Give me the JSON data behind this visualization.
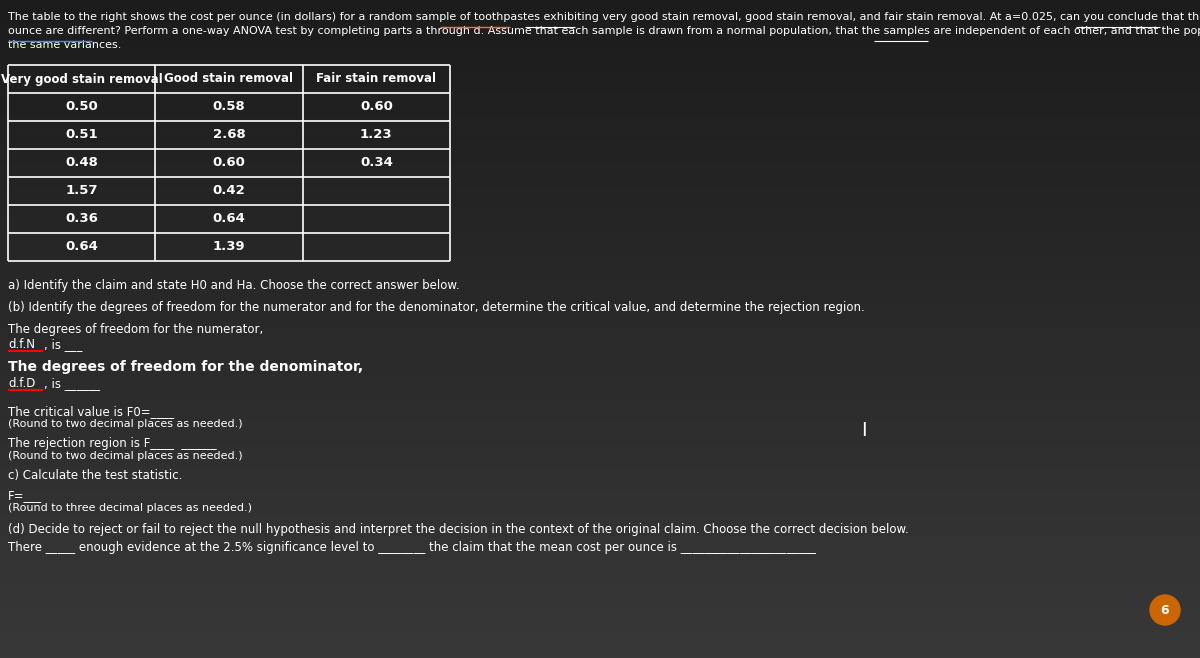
{
  "bg_top": "#1a1a1a",
  "bg_bottom": "#3a3a3a",
  "text_color": "#ffffff",
  "table_border_color": "#ffffff",
  "header_row": [
    "Very good stain removal",
    "Good stain removal",
    "Fair stain removal"
  ],
  "col1": [
    "0.50",
    "0.51",
    "0.48",
    "1.57",
    "0.36",
    "0.64"
  ],
  "col2": [
    "0.58",
    "2.68",
    "0.60",
    "0.42",
    "0.64",
    "1.39"
  ],
  "col3": [
    "0.60",
    "1.23",
    "0.34",
    "",
    "",
    ""
  ],
  "intro_line1": "The table to the right shows the cost per ounce (in dollars) for a random sample of toothpastes exhibiting very good stain removal, good stain removal, and fair stain removal. At a=0.025, can you conclude that the mean costs per",
  "intro_line2": "ounce are different? Perform a one-way ANOVA test by completing parts a through d. Assume that each sample is drawn from a normal population, that the samples are independent of each other, and that the populations have",
  "intro_line3": "the same variances.",
  "part_a": "a) Identify the claim and state H0 and Ha. Choose the correct answer below.",
  "part_b": "(b) Identify the degrees of freedom for the numerator and for the denominator, determine the critical value, and determine the rejection region.",
  "dfn_line1": "The degrees of freedom for the numerator,",
  "dfn_line2": "d.f.N, is ___",
  "dfd_line1": "The degrees of freedom for the denominator,",
  "dfd_line2": "d.f.D, is ______",
  "crit_line1": "The critical value is F0=____",
  "crit_line2": "(Round to two decimal places as needed.)",
  "rej_line1": "The rejection region is F____  ______",
  "rej_line2": "(Round to two decimal places as needed.)",
  "part_c": "c) Calculate the test statistic.",
  "f_line1": "F=___",
  "f_line2": "(Round to three decimal places as needed.)",
  "part_d": "(d) Decide to reject or fail to reject the null hypothesis and interpret the decision in the context of the original claim. Choose the correct decision below.",
  "conclusion": "There _____ enough evidence at the 2.5% significance level to ________ the claim that the mean cost per ounce is _______________________",
  "circle_label": "6",
  "circle_color": "#cc6600"
}
